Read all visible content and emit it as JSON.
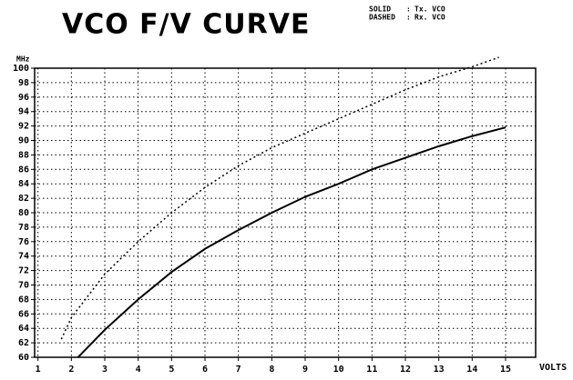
{
  "chart_data": {
    "type": "line",
    "title": "VCO F/V CURVE",
    "ylabel": "MHz",
    "xlabel": "VOLTS",
    "xlim": [
      0.9,
      15.9
    ],
    "ylim": [
      60,
      100
    ],
    "xticks": [
      1,
      2,
      3,
      4,
      5,
      6,
      7,
      8,
      9,
      10,
      11,
      12,
      13,
      14,
      15
    ],
    "yticks": [
      60,
      62,
      64,
      66,
      68,
      70,
      72,
      74,
      76,
      78,
      80,
      82,
      84,
      86,
      88,
      90,
      92,
      94,
      96,
      98,
      100
    ],
    "grid": true,
    "series": [
      {
        "name": "Tx. VCO",
        "style": "SOLID",
        "color": "#000000",
        "x": [
          2.2,
          3,
          4,
          5,
          6,
          7,
          8,
          9,
          10,
          11,
          12,
          13,
          14,
          15
        ],
        "values": [
          60,
          63.8,
          68,
          71.8,
          75,
          77.6,
          80,
          82.2,
          84,
          86,
          87.6,
          89.2,
          90.6,
          91.8
        ]
      },
      {
        "name": "Rx. VCO",
        "style": "DASHED",
        "color": "#000000",
        "x": [
          1.7,
          2,
          3,
          4,
          5,
          6,
          7,
          8,
          9,
          10,
          11,
          12,
          13,
          14,
          14.8
        ],
        "values": [
          62.5,
          65.5,
          71.5,
          76,
          80,
          83.5,
          86.5,
          89,
          91,
          93,
          95,
          97,
          98.8,
          100.2,
          101.5
        ]
      }
    ]
  }
}
